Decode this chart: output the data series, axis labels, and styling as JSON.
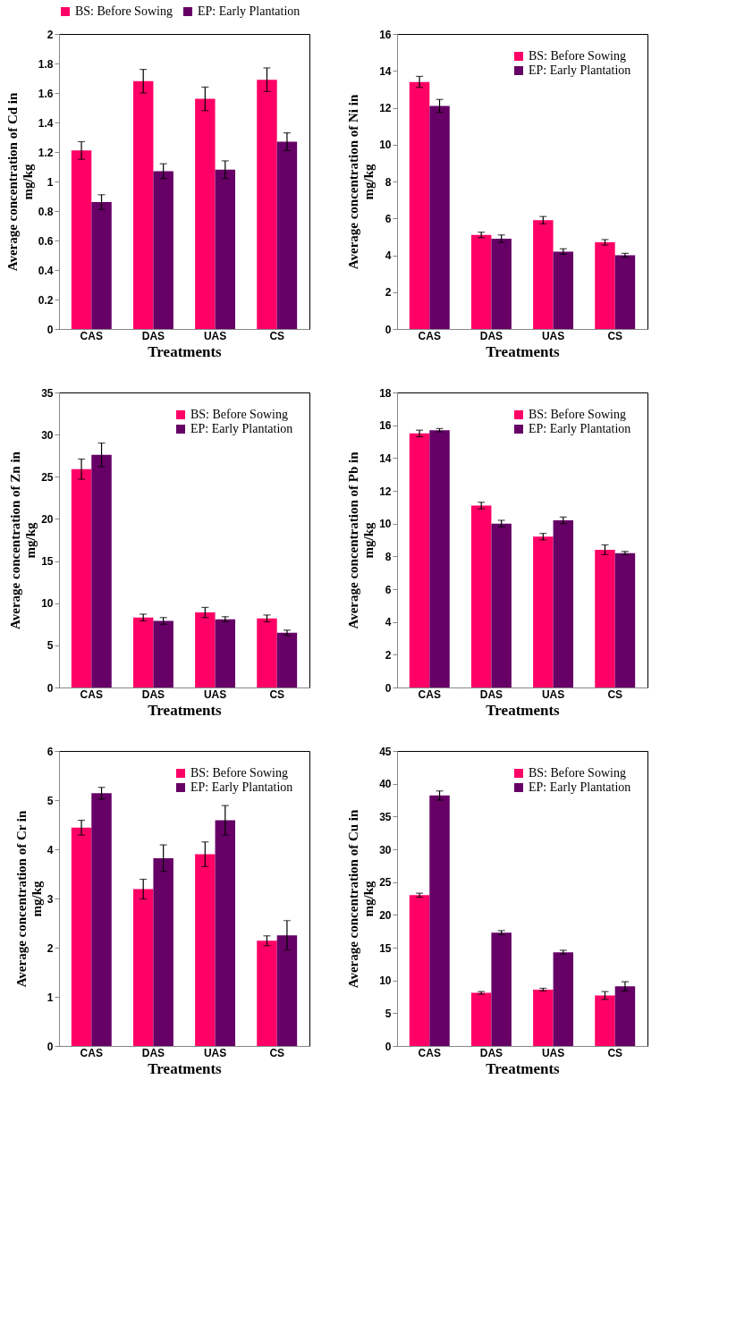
{
  "chart_data": [
    {
      "type": "bar",
      "xlabel": "Treatments",
      "ylabel": "Average concentration of Cd in mg/kg",
      "categories": [
        "CAS",
        "DAS",
        "UAS",
        "CS"
      ],
      "ylim": [
        0,
        2
      ],
      "yticks": [
        0,
        0.2,
        0.4,
        0.6,
        0.8,
        1,
        1.2,
        1.4,
        1.6,
        1.8,
        2
      ],
      "legend": "top",
      "series": [
        {
          "name": "BS: Before Sowing",
          "color": "#ff0066",
          "values": [
            1.21,
            1.68,
            1.56,
            1.69
          ],
          "errors": [
            0.06,
            0.08,
            0.08,
            0.08
          ]
        },
        {
          "name": "EP: Early Plantation",
          "color": "#660066",
          "values": [
            0.86,
            1.07,
            1.08,
            1.27
          ],
          "errors": [
            0.05,
            0.05,
            0.06,
            0.06
          ]
        }
      ]
    },
    {
      "type": "bar",
      "xlabel": "Treatments",
      "ylabel": "Average concentration of Ni in mg/kg",
      "categories": [
        "CAS",
        "DAS",
        "UAS",
        "CS"
      ],
      "ylim": [
        0,
        16
      ],
      "yticks": [
        0,
        2,
        4,
        6,
        8,
        10,
        12,
        14,
        16
      ],
      "legend": "top right",
      "series": [
        {
          "name": "BS: Before Sowing",
          "color": "#ff0066",
          "values": [
            13.4,
            5.1,
            5.9,
            4.7
          ],
          "errors": [
            0.3,
            0.15,
            0.2,
            0.15
          ]
        },
        {
          "name": "EP: Early Plantation",
          "color": "#660066",
          "values": [
            12.1,
            4.9,
            4.2,
            4.0
          ],
          "errors": [
            0.35,
            0.2,
            0.15,
            0.1
          ]
        }
      ]
    },
    {
      "type": "bar",
      "xlabel": "Treatments",
      "ylabel": "Average concentration of Zn in mg/kg",
      "categories": [
        "CAS",
        "DAS",
        "UAS",
        "CS"
      ],
      "ylim": [
        0,
        35
      ],
      "yticks": [
        0,
        5,
        10,
        15,
        20,
        25,
        30,
        35
      ],
      "legend": "top right",
      "series": [
        {
          "name": "BS: Before Sowing",
          "color": "#ff0066",
          "values": [
            25.9,
            8.3,
            8.9,
            8.2
          ],
          "errors": [
            1.2,
            0.4,
            0.6,
            0.4
          ]
        },
        {
          "name": "EP: Early Plantation",
          "color": "#660066",
          "values": [
            27.6,
            7.9,
            8.1,
            6.5
          ],
          "errors": [
            1.4,
            0.4,
            0.3,
            0.3
          ]
        }
      ]
    },
    {
      "type": "bar",
      "xlabel": "Treatments",
      "ylabel": "Average concentration of Pb in mg/kg",
      "categories": [
        "CAS",
        "DAS",
        "UAS",
        "CS"
      ],
      "ylim": [
        0,
        18
      ],
      "yticks": [
        0,
        2,
        4,
        6,
        8,
        10,
        12,
        14,
        16,
        18
      ],
      "legend": "top right",
      "series": [
        {
          "name": "BS: Before Sowing",
          "color": "#ff0066",
          "values": [
            15.5,
            11.1,
            9.2,
            8.4
          ],
          "errors": [
            0.2,
            0.2,
            0.2,
            0.3
          ]
        },
        {
          "name": "EP: Early Plantation",
          "color": "#660066",
          "values": [
            15.7,
            10.0,
            10.2,
            8.2
          ],
          "errors": [
            0.1,
            0.2,
            0.2,
            0.1
          ]
        }
      ]
    },
    {
      "type": "bar",
      "xlabel": "Treatments",
      "ylabel": "Average concentration of Cr in mg/kg",
      "categories": [
        "CAS",
        "DAS",
        "UAS",
        "CS"
      ],
      "ylim": [
        0,
        6
      ],
      "yticks": [
        0,
        1,
        2,
        3,
        4,
        5,
        6
      ],
      "legend": "top right",
      "series": [
        {
          "name": "BS: Before Sowing",
          "color": "#ff0066",
          "values": [
            4.44,
            3.19,
            3.9,
            2.14
          ],
          "errors": [
            0.15,
            0.2,
            0.25,
            0.1
          ]
        },
        {
          "name": "EP: Early Plantation",
          "color": "#660066",
          "values": [
            5.14,
            3.82,
            4.59,
            2.25
          ],
          "errors": [
            0.12,
            0.27,
            0.3,
            0.3
          ]
        }
      ]
    },
    {
      "type": "bar",
      "xlabel": "Treatments",
      "ylabel": "Average concentration of Cu in mg/kg",
      "categories": [
        "CAS",
        "DAS",
        "UAS",
        "CS"
      ],
      "ylim": [
        0,
        45
      ],
      "yticks": [
        0,
        5,
        10,
        15,
        20,
        25,
        30,
        35,
        40,
        45
      ],
      "legend": "top right",
      "series": [
        {
          "name": "BS: Before Sowing",
          "color": "#ff0066",
          "values": [
            23.0,
            8.1,
            8.6,
            7.7
          ],
          "errors": [
            0.3,
            0.2,
            0.2,
            0.6
          ]
        },
        {
          "name": "EP: Early Plantation",
          "color": "#660066",
          "values": [
            38.2,
            17.3,
            14.3,
            9.1
          ],
          "errors": [
            0.7,
            0.3,
            0.3,
            0.7
          ]
        }
      ]
    }
  ]
}
